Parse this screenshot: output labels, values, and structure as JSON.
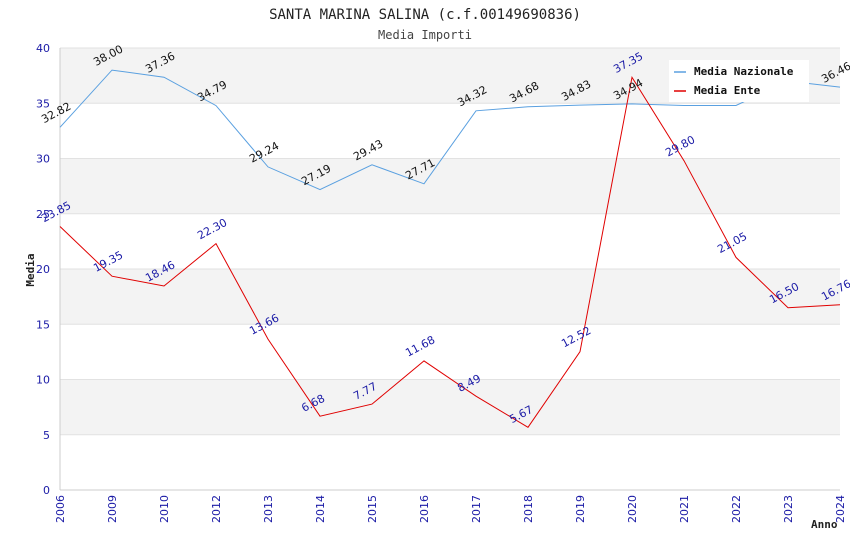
{
  "chart_data": {
    "type": "line",
    "title": "SANTA MARINA SALINA (c.f.00149690836)",
    "subtitle": "Media Importi",
    "xlabel": "Anno",
    "ylabel": "Media",
    "ylim": [
      0,
      40
    ],
    "y_ticks": [
      "0",
      "5",
      "10",
      "15",
      "20",
      "25",
      "30",
      "35",
      "40"
    ],
    "grid": true,
    "legend_position": "top-right",
    "categories": [
      "2006",
      "2009",
      "2010",
      "2012",
      "2013",
      "2014",
      "2015",
      "2016",
      "2017",
      "2018",
      "2019",
      "2020",
      "2021",
      "2022",
      "2023",
      "2024"
    ],
    "series": [
      {
        "name": "Media Nazionale",
        "color": "#5aa0e0",
        "label_color": "#111111",
        "values": [
          32.82,
          38.0,
          37.36,
          34.79,
          29.24,
          27.19,
          29.43,
          27.71,
          34.32,
          34.68,
          34.83,
          34.94,
          34.8,
          34.8,
          37.0,
          36.46
        ],
        "labels": [
          "32.82",
          "38.00",
          "37.36",
          "34.79",
          "29.24",
          "27.19",
          "29.43",
          "27.71",
          "34.32",
          "34.68",
          "34.83",
          "34.94",
          "",
          "",
          "",
          "36.46"
        ]
      },
      {
        "name": "Media Ente",
        "color": "#e00000",
        "label_color": "#1a1aa6",
        "values": [
          23.85,
          19.35,
          18.46,
          22.3,
          13.66,
          6.68,
          7.77,
          11.68,
          8.49,
          5.67,
          12.52,
          37.35,
          29.8,
          21.05,
          16.5,
          16.76
        ],
        "labels": [
          "23.85",
          "19.35",
          "18.46",
          "22.30",
          "13.66",
          "6.68",
          "7.77",
          "11.68",
          "8.49",
          "5.67",
          "12.52",
          "37.35",
          "29.80",
          "21.05",
          "16.50",
          "16.76"
        ]
      }
    ]
  }
}
